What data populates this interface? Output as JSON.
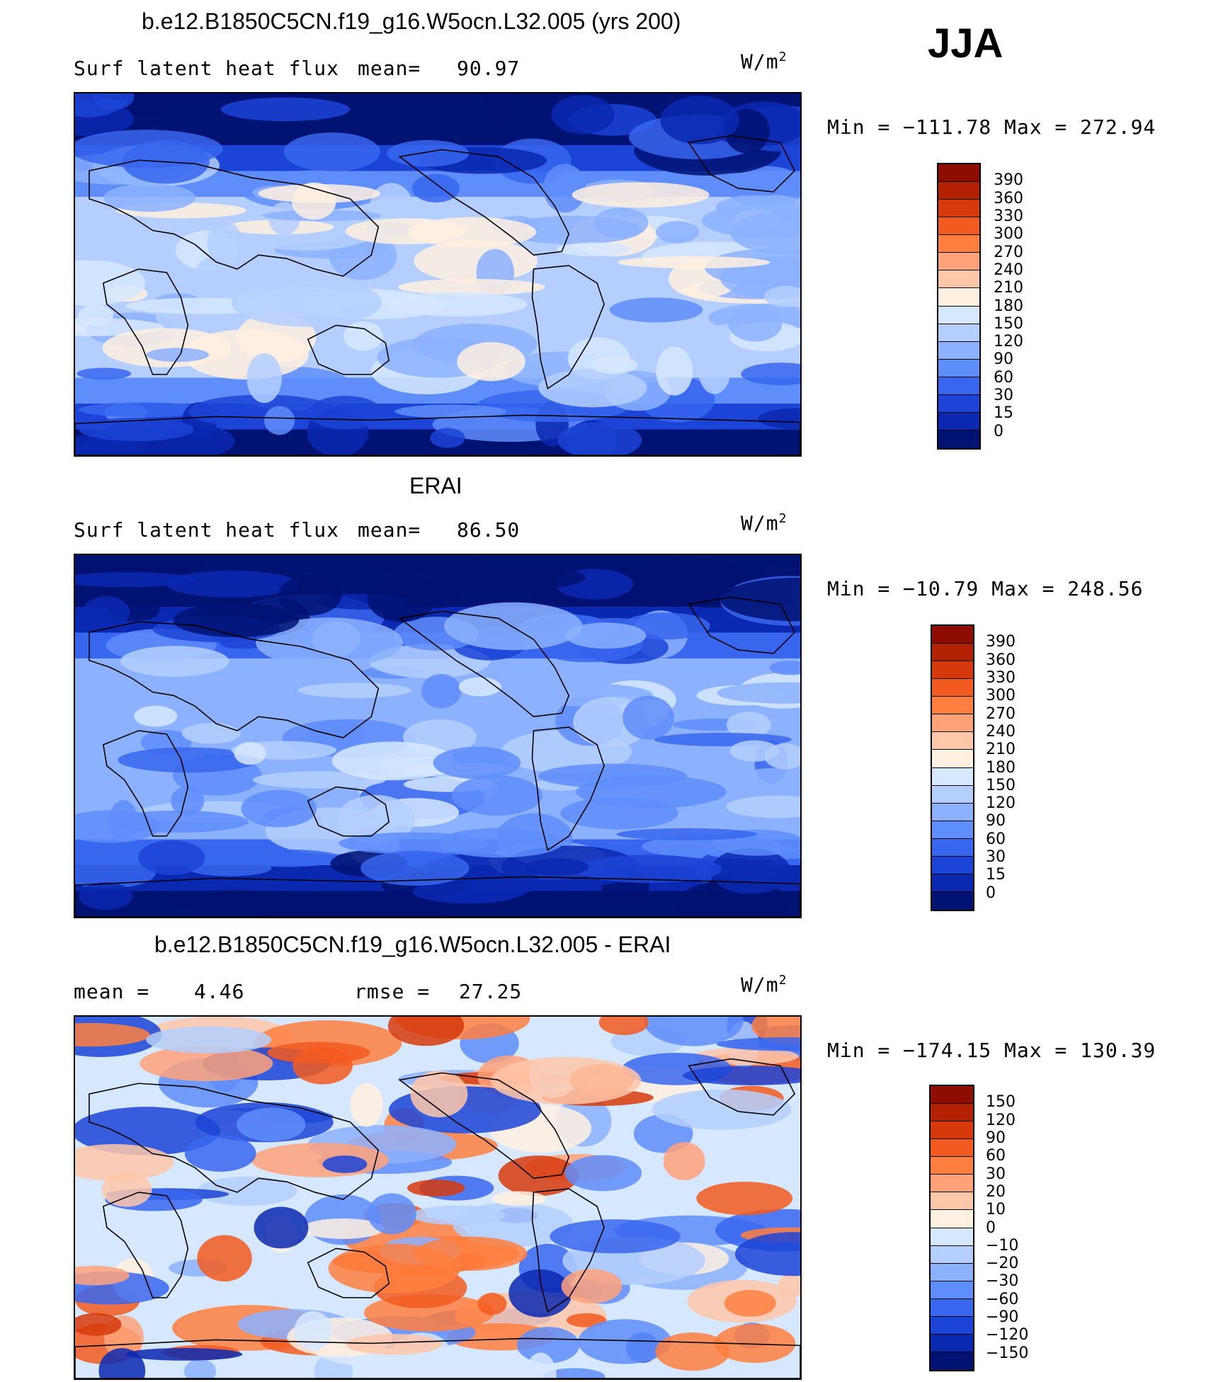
{
  "season": "JJA",
  "units_label": "W/m",
  "units_exp": "2",
  "panels": [
    {
      "title": "b.e12.B1850C5CN.f19_g16.W5ocn.L32.005 (yrs 200)",
      "stat_left_label": "Surf latent heat flux",
      "stat_right_label": "mean=",
      "stat_right_value": "90.97",
      "minmax_text": "Min = −111.78 Max = 272.94",
      "levels": [
        "390",
        "360",
        "330",
        "300",
        "270",
        "240",
        "210",
        "180",
        "150",
        "120",
        "90",
        "60",
        "30",
        "15",
        "0"
      ],
      "colors": [
        "#8e0c00",
        "#b32200",
        "#d63a0c",
        "#f25a20",
        "#ff7f40",
        "#ffa27a",
        "#ffc7aa",
        "#fff0e0",
        "#d6e8ff",
        "#b4cfff",
        "#8cb2ff",
        "#5f8dfa",
        "#3866ee",
        "#1c44d6",
        "#0a28b0",
        "#001272"
      ]
    },
    {
      "title": "ERAI",
      "stat_left_label": "Surf latent heat flux",
      "stat_right_label": "mean=",
      "stat_right_value": "86.50",
      "minmax_text": "Min = −10.79 Max = 248.56",
      "levels": [
        "390",
        "360",
        "330",
        "300",
        "270",
        "240",
        "210",
        "180",
        "150",
        "120",
        "90",
        "60",
        "30",
        "15",
        "0"
      ],
      "colors": [
        "#8e0c00",
        "#b32200",
        "#d63a0c",
        "#f25a20",
        "#ff7f40",
        "#ffa27a",
        "#ffc7aa",
        "#fff0e0",
        "#d6e8ff",
        "#b4cfff",
        "#8cb2ff",
        "#5f8dfa",
        "#3866ee",
        "#1c44d6",
        "#0a28b0",
        "#001272"
      ]
    },
    {
      "title": "b.e12.B1850C5CN.f19_g16.W5ocn.L32.005 - ERAI",
      "stat_left_label": "mean =",
      "stat_left_value": "4.46",
      "stat_right_label": "rmse =",
      "stat_right_value": "27.25",
      "minmax_text": "Min = −174.15 Max = 130.39",
      "levels": [
        "150",
        "120",
        "90",
        "60",
        "30",
        "20",
        "10",
        "0",
        "−10",
        "−20",
        "−30",
        "−60",
        "−90",
        "−120",
        "−150"
      ],
      "colors": [
        "#8e0c00",
        "#b32200",
        "#d63a0c",
        "#f25a20",
        "#ff7f40",
        "#ffa27a",
        "#ffc7aa",
        "#fff0e0",
        "#d6e8ff",
        "#b4cfff",
        "#8cb2ff",
        "#5f8dfa",
        "#3866ee",
        "#1c44d6",
        "#0a28b0",
        "#001272"
      ]
    }
  ],
  "chart_data": {
    "type": "heatmap",
    "figure_label": "JJA",
    "units": "W/m2",
    "maps": [
      {
        "title": "b.e12.B1850C5CN.f19_g16.W5ocn.L32.005 (yrs 200)",
        "variable": "Surf latent heat flux",
        "mean": 90.97,
        "min": -111.78,
        "max": 272.94,
        "contour_levels": [
          0,
          15,
          30,
          60,
          90,
          120,
          150,
          180,
          210,
          240,
          270,
          300,
          330,
          360,
          390
        ]
      },
      {
        "title": "ERAI",
        "variable": "Surf latent heat flux",
        "mean": 86.5,
        "min": -10.79,
        "max": 248.56,
        "contour_levels": [
          0,
          15,
          30,
          60,
          90,
          120,
          150,
          180,
          210,
          240,
          270,
          300,
          330,
          360,
          390
        ]
      },
      {
        "title": "b.e12.B1850C5CN.f19_g16.W5ocn.L32.005 - ERAI",
        "mean": 4.46,
        "rmse": 27.25,
        "min": -174.15,
        "max": 130.39,
        "contour_levels": [
          -150,
          -120,
          -90,
          -60,
          -30,
          -20,
          -10,
          0,
          10,
          20,
          30,
          60,
          90,
          120,
          150
        ]
      }
    ]
  }
}
